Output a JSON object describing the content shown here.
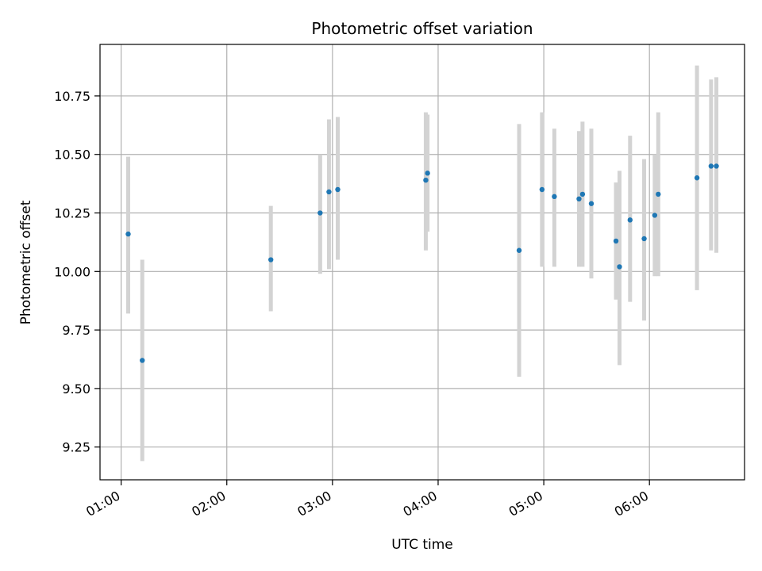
{
  "chart_data": {
    "type": "scatter",
    "title": "Photometric offset variation",
    "xlabel": "UTC time",
    "ylabel": "Photometric offset",
    "grid": true,
    "error_bar_color": "#d3d3d3",
    "point_color": "#1f77b4",
    "xlim": [
      "00:48",
      "06:54"
    ],
    "ylim": [
      9.11,
      10.97
    ],
    "x_ticks": [
      "01:00",
      "02:00",
      "03:00",
      "04:00",
      "05:00",
      "06:00"
    ],
    "y_ticks": [
      "9.25",
      "9.50",
      "9.75",
      "10.00",
      "10.25",
      "10.50",
      "10.75"
    ],
    "points": [
      {
        "t": "01:04",
        "y": 10.16,
        "ylow": 9.82,
        "yhigh": 10.49
      },
      {
        "t": "01:12",
        "y": 9.62,
        "ylow": 9.19,
        "yhigh": 10.05
      },
      {
        "t": "02:25",
        "y": 10.05,
        "ylow": 9.83,
        "yhigh": 10.28
      },
      {
        "t": "02:53",
        "y": 10.25,
        "ylow": 9.99,
        "yhigh": 10.5
      },
      {
        "t": "02:58",
        "y": 10.34,
        "ylow": 10.01,
        "yhigh": 10.65
      },
      {
        "t": "03:03",
        "y": 10.35,
        "ylow": 10.05,
        "yhigh": 10.66
      },
      {
        "t": "03:53",
        "y": 10.39,
        "ylow": 10.09,
        "yhigh": 10.68
      },
      {
        "t": "03:54",
        "y": 10.42,
        "ylow": 10.17,
        "yhigh": 10.67
      },
      {
        "t": "04:46",
        "y": 10.09,
        "ylow": 9.55,
        "yhigh": 10.63
      },
      {
        "t": "04:59",
        "y": 10.35,
        "ylow": 10.02,
        "yhigh": 10.68
      },
      {
        "t": "05:06",
        "y": 10.32,
        "ylow": 10.02,
        "yhigh": 10.61
      },
      {
        "t": "05:20",
        "y": 10.31,
        "ylow": 10.02,
        "yhigh": 10.6
      },
      {
        "t": "05:22",
        "y": 10.33,
        "ylow": 10.02,
        "yhigh": 10.64
      },
      {
        "t": "05:27",
        "y": 10.29,
        "ylow": 9.97,
        "yhigh": 10.61
      },
      {
        "t": "05:41",
        "y": 10.13,
        "ylow": 9.88,
        "yhigh": 10.38
      },
      {
        "t": "05:43",
        "y": 10.02,
        "ylow": 9.6,
        "yhigh": 10.43
      },
      {
        "t": "05:49",
        "y": 10.22,
        "ylow": 9.87,
        "yhigh": 10.58
      },
      {
        "t": "05:57",
        "y": 10.14,
        "ylow": 9.79,
        "yhigh": 10.48
      },
      {
        "t": "06:03",
        "y": 10.24,
        "ylow": 9.98,
        "yhigh": 10.5
      },
      {
        "t": "06:05",
        "y": 10.33,
        "ylow": 9.98,
        "yhigh": 10.68
      },
      {
        "t": "06:27",
        "y": 10.4,
        "ylow": 9.92,
        "yhigh": 10.88
      },
      {
        "t": "06:35",
        "y": 10.45,
        "ylow": 10.09,
        "yhigh": 10.82
      },
      {
        "t": "06:38",
        "y": 10.45,
        "ylow": 10.08,
        "yhigh": 10.83
      }
    ]
  }
}
